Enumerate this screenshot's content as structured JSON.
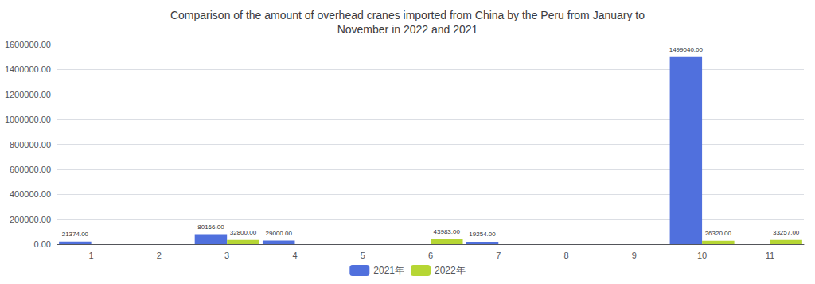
{
  "chart_data": {
    "type": "bar",
    "title": "Comparison of the amount of overhead cranes imported from China by the Peru from January to\nNovember in 2022 and 2021",
    "categories": [
      "1",
      "2",
      "3",
      "4",
      "5",
      "6",
      "7",
      "8",
      "9",
      "10",
      "11"
    ],
    "series": [
      {
        "name": "2021年",
        "values": [
          21374,
          0,
          80166,
          29000,
          0,
          0,
          19254,
          0,
          0,
          1499040,
          0
        ],
        "value_labels": [
          "21374.00",
          null,
          "80166.00",
          "29000.00",
          null,
          null,
          "19254.00",
          null,
          null,
          "1499040.00",
          null
        ]
      },
      {
        "name": "2022年",
        "values": [
          0,
          0,
          32800,
          0,
          0,
          43983,
          0,
          0,
          0,
          26320,
          33257
        ],
        "value_labels": [
          null,
          null,
          "32800.00",
          null,
          null,
          "43983.00",
          null,
          null,
          null,
          "26320.00",
          "33257.00"
        ]
      }
    ],
    "ylim": [
      0,
      1600000
    ],
    "yticks": [
      {
        "value": 0,
        "label": "0.00"
      },
      {
        "value": 200000,
        "label": "200000.00"
      },
      {
        "value": 400000,
        "label": "400000.00"
      },
      {
        "value": 600000,
        "label": "600000.00"
      },
      {
        "value": 800000,
        "label": "800000.00"
      },
      {
        "value": 1000000,
        "label": "1000000.00"
      },
      {
        "value": 1200000,
        "label": "1200000.00"
      },
      {
        "value": 1400000,
        "label": "1400000.00"
      },
      {
        "value": 1600000,
        "label": "1600000.00"
      }
    ],
    "grid": true,
    "legend": "bottom",
    "data_labels": true
  }
}
